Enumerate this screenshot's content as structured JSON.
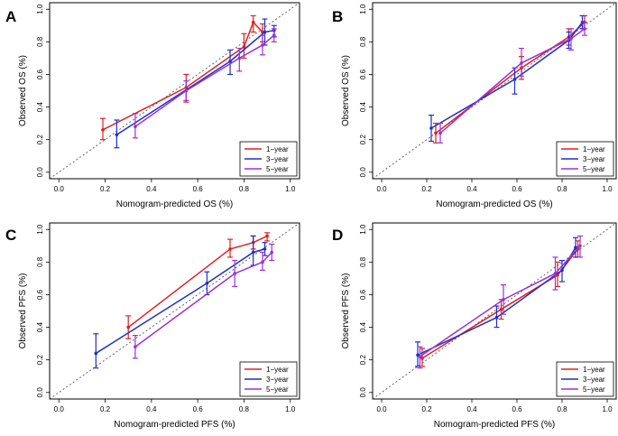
{
  "chart_data": [
    {
      "type": "line",
      "panel_letter": "A",
      "title": "",
      "xlabel": "Nomogram-predicted OS (%)",
      "ylabel": "Observed OS (%)",
      "xlim": [
        0,
        1
      ],
      "ylim": [
        0,
        1
      ],
      "xticks": [
        "0.0",
        "0.2",
        "0.4",
        "0.6",
        "0.8",
        "1.0"
      ],
      "yticks": [
        "0.0",
        "0.2",
        "0.4",
        "0.6",
        "0.8",
        "1.0"
      ],
      "reference_line": "y = x (dotted)",
      "legend_position": "bottom-right",
      "series": [
        {
          "name": "1−year",
          "color": "#e02020",
          "x": [
            0.19,
            0.55,
            0.8,
            0.84,
            0.88
          ],
          "y": [
            0.26,
            0.52,
            0.77,
            0.92,
            0.86
          ],
          "lo": [
            0.2,
            0.43,
            0.7,
            0.86,
            0.8
          ],
          "hi": [
            0.33,
            0.6,
            0.85,
            0.96,
            0.91
          ]
        },
        {
          "name": "3−year",
          "color": "#1e2fc8",
          "x": [
            0.25,
            0.74,
            0.89,
            0.93
          ],
          "y": [
            0.23,
            0.68,
            0.86,
            0.87
          ],
          "lo": [
            0.15,
            0.6,
            0.78,
            0.83
          ],
          "hi": [
            0.32,
            0.75,
            0.94,
            0.9
          ]
        },
        {
          "name": "5−year",
          "color": "#9b30d9",
          "x": [
            0.33,
            0.55,
            0.78,
            0.88,
            0.93
          ],
          "y": [
            0.28,
            0.5,
            0.7,
            0.78,
            0.84
          ],
          "lo": [
            0.21,
            0.44,
            0.62,
            0.72,
            0.8
          ],
          "hi": [
            0.36,
            0.56,
            0.76,
            0.84,
            0.88
          ]
        }
      ]
    },
    {
      "type": "line",
      "panel_letter": "B",
      "title": "",
      "xlabel": "Nomogram-predicted OS (%)",
      "ylabel": "Observed OS (%)",
      "xlim": [
        0,
        1
      ],
      "ylim": [
        0,
        1
      ],
      "xticks": [
        "0.0",
        "0.2",
        "0.4",
        "0.6",
        "0.8",
        "1.0"
      ],
      "yticks": [
        "0.0",
        "0.2",
        "0.4",
        "0.6",
        "0.8",
        "1.0"
      ],
      "reference_line": "y = x (dotted)",
      "legend_position": "bottom-right",
      "series": [
        {
          "name": "1−year",
          "color": "#e02020",
          "x": [
            0.24,
            0.62,
            0.83,
            0.9
          ],
          "y": [
            0.24,
            0.64,
            0.83,
            0.92
          ],
          "lo": [
            0.18,
            0.57,
            0.78,
            0.88
          ],
          "hi": [
            0.3,
            0.71,
            0.88,
            0.96
          ]
        },
        {
          "name": "3−year",
          "color": "#1e2fc8",
          "x": [
            0.22,
            0.59,
            0.83,
            0.89
          ],
          "y": [
            0.27,
            0.57,
            0.81,
            0.92
          ],
          "lo": [
            0.19,
            0.48,
            0.76,
            0.88
          ],
          "hi": [
            0.35,
            0.64,
            0.86,
            0.96
          ]
        },
        {
          "name": "5−year",
          "color": "#9b30d9",
          "x": [
            0.26,
            0.62,
            0.84,
            0.9
          ],
          "y": [
            0.24,
            0.67,
            0.82,
            0.88
          ],
          "lo": [
            0.18,
            0.59,
            0.75,
            0.84
          ],
          "hi": [
            0.3,
            0.76,
            0.88,
            0.92
          ]
        }
      ]
    },
    {
      "type": "line",
      "panel_letter": "C",
      "title": "",
      "xlabel": "Nomogram-predicted  PFS (%)",
      "ylabel": "Observed  PFS (%)",
      "xlim": [
        0,
        1
      ],
      "ylim": [
        0,
        1
      ],
      "xticks": [
        "0.0",
        "0.2",
        "0.4",
        "0.6",
        "0.8",
        "1.0"
      ],
      "yticks": [
        "0.0",
        "0.2",
        "0.4",
        "0.6",
        "0.8",
        "1.0"
      ],
      "reference_line": "y = x (dotted)",
      "legend_position": "bottom-right",
      "series": [
        {
          "name": "1−year",
          "color": "#e02020",
          "x": [
            0.3,
            0.74,
            0.84,
            0.9
          ],
          "y": [
            0.4,
            0.88,
            0.92,
            0.96
          ],
          "lo": [
            0.33,
            0.83,
            0.88,
            0.93
          ],
          "hi": [
            0.47,
            0.94,
            0.96,
            0.98
          ]
        },
        {
          "name": "3−year",
          "color": "#1e2fc8",
          "x": [
            0.16,
            0.64,
            0.84,
            0.89
          ],
          "y": [
            0.24,
            0.67,
            0.86,
            0.88
          ],
          "lo": [
            0.15,
            0.6,
            0.78,
            0.84
          ],
          "hi": [
            0.36,
            0.74,
            0.96,
            0.92
          ]
        },
        {
          "name": "5−year",
          "color": "#9b30d9",
          "x": [
            0.33,
            0.76,
            0.88,
            0.92
          ],
          "y": [
            0.28,
            0.73,
            0.8,
            0.86
          ],
          "lo": [
            0.21,
            0.65,
            0.75,
            0.81
          ],
          "hi": [
            0.35,
            0.81,
            0.86,
            0.91
          ]
        }
      ]
    },
    {
      "type": "line",
      "panel_letter": "D",
      "title": "",
      "xlabel": "Nomogram-predicted PFS (%)",
      "ylabel": "Observed  PFS (%)",
      "xlim": [
        0,
        1
      ],
      "ylim": [
        0,
        1
      ],
      "xticks": [
        "0.0",
        "0.2",
        "0.4",
        "0.6",
        "0.8",
        "1.0"
      ],
      "yticks": [
        "0.0",
        "0.2",
        "0.4",
        "0.6",
        "0.8",
        "1.0"
      ],
      "reference_line": "y = x (dotted)",
      "legend_position": "bottom-right",
      "series": [
        {
          "name": "1−year",
          "color": "#e02020",
          "x": [
            0.18,
            0.53,
            0.78,
            0.87
          ],
          "y": [
            0.21,
            0.51,
            0.72,
            0.88
          ],
          "lo": [
            0.16,
            0.45,
            0.65,
            0.83
          ],
          "hi": [
            0.27,
            0.57,
            0.8,
            0.93
          ]
        },
        {
          "name": "3−year",
          "color": "#1e2fc8",
          "x": [
            0.16,
            0.51,
            0.8,
            0.86
          ],
          "y": [
            0.23,
            0.46,
            0.75,
            0.89
          ],
          "lo": [
            0.16,
            0.4,
            0.68,
            0.83
          ],
          "hi": [
            0.31,
            0.53,
            0.81,
            0.95
          ]
        },
        {
          "name": "5−year",
          "color": "#9b30d9",
          "x": [
            0.17,
            0.54,
            0.77,
            0.88
          ],
          "y": [
            0.22,
            0.57,
            0.73,
            0.9
          ],
          "lo": [
            0.15,
            0.48,
            0.63,
            0.83
          ],
          "hi": [
            0.28,
            0.66,
            0.83,
            0.96
          ]
        }
      ]
    }
  ]
}
